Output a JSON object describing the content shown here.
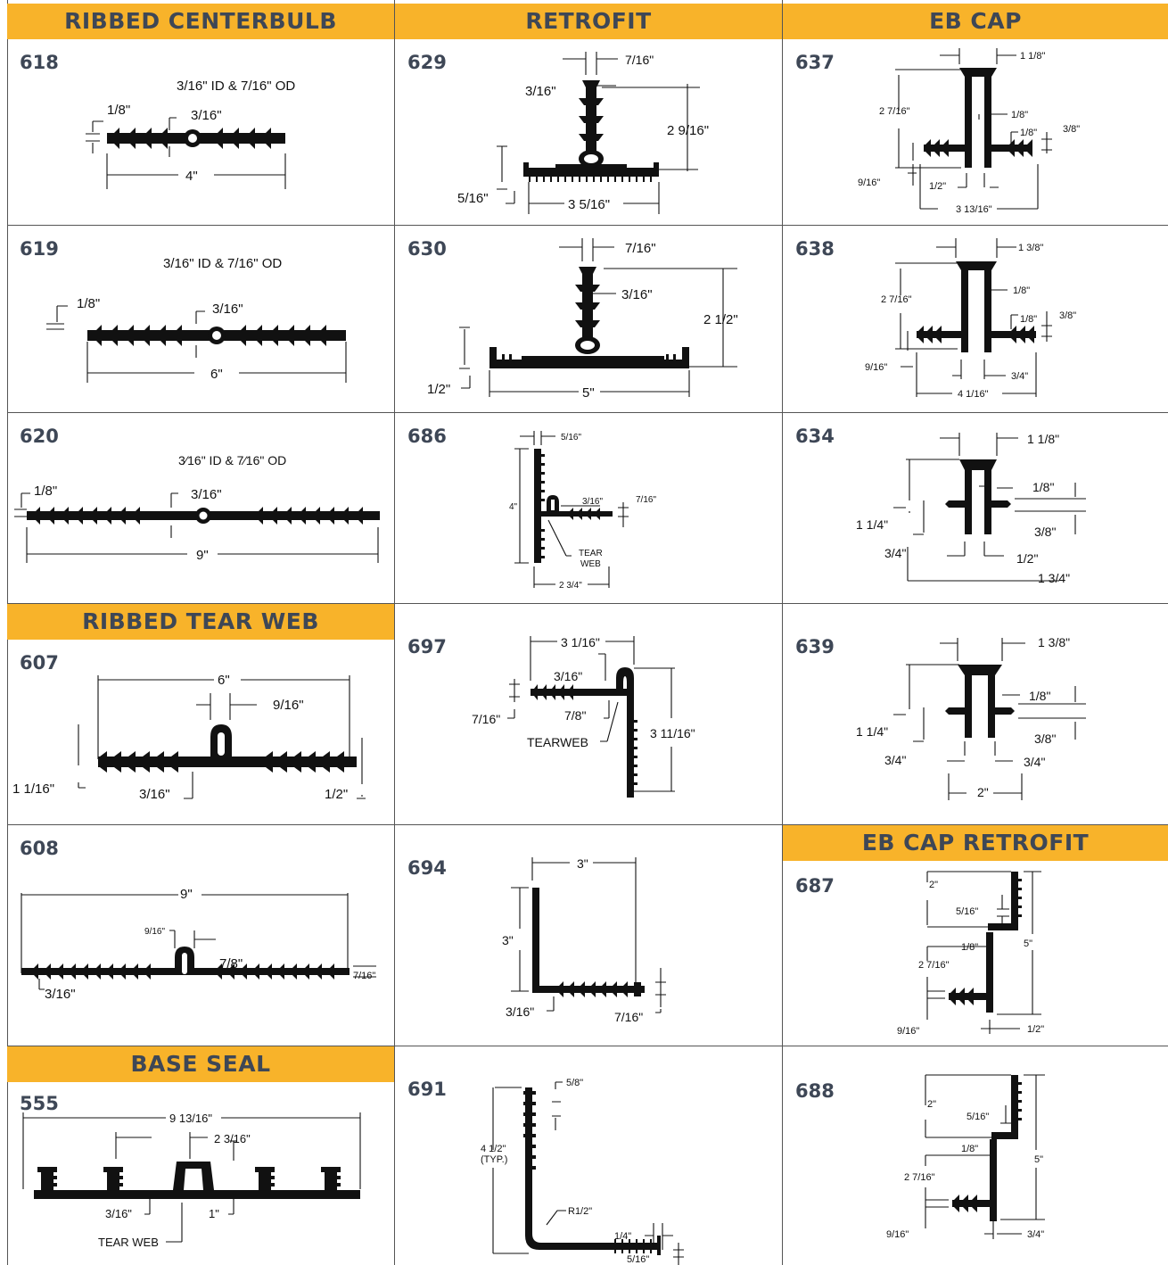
{
  "headers": {
    "ribbed_centerbulb": "RIBBED CENTERBULB",
    "retrofit": "RETROFIT",
    "eb_cap": "EB CAP",
    "ribbed_tear_web": "RIBBED TEAR WEB",
    "eb_cap_retrofit": "EB CAP RETROFIT",
    "base_seal": "BASE SEAL"
  },
  "products": {
    "p618": {
      "code": "618",
      "note": "3/16\" ID & 7/16\" OD",
      "d1": "1/8\"",
      "d2": "3/16\"",
      "d3": "4\""
    },
    "p619": {
      "code": "619",
      "note": "3/16\" ID & 7/16\" OD",
      "d1": "1/8\"",
      "d2": "3/16\"",
      "d3": "6\""
    },
    "p620": {
      "code": "620",
      "note": "3⁄16\" ID & 7⁄16\" OD",
      "d1": "1/8\"",
      "d2": "3/16\"",
      "d3": "9\""
    },
    "p607": {
      "code": "607",
      "d1": "6\"",
      "d2": "9/16\"",
      "d3": "1 1/16\"",
      "d4": "3/16\"",
      "d5": "1/2\""
    },
    "p608": {
      "code": "608",
      "d1": "9\"",
      "d2": "9/16\"",
      "d3": "7/8\"",
      "d4": "7/16\"",
      "d5": "3/16\""
    },
    "p555": {
      "code": "555",
      "d1": "9 13/16\"",
      "d2": "2 3/16\"",
      "d3": "3/16\"",
      "d4": "1\"",
      "d5": "TEAR WEB"
    },
    "p629": {
      "code": "629",
      "d1": "7/16\"",
      "d2": "3/16\"",
      "d3": "2 9/16\"",
      "d4": "5/16\"",
      "d5": "3 5/16\""
    },
    "p630": {
      "code": "630",
      "d1": "7/16\"",
      "d2": "3/16\"",
      "d3": "2 1/2\"",
      "d4": "1/2\"",
      "d5": "5\""
    },
    "p686": {
      "code": "686",
      "d1": "5/16\"",
      "d2": "4\"",
      "d3": "3/16\"",
      "d4": "7/16\"",
      "d5": "TEAR",
      "d6": "WEB",
      "d7": "2 3/4\""
    },
    "p697": {
      "code": "697",
      "d1": "3 1/16\"",
      "d2": "3/16\"",
      "d3": "7/16\"",
      "d4": "7/8\"",
      "d5": "TEARWEB",
      "d6": "3 11/16\""
    },
    "p694": {
      "code": "694",
      "d1": "3\"",
      "d2": "3\"",
      "d3": "3/16\"",
      "d4": "7/16\""
    },
    "p691": {
      "code": "691",
      "d1": "5/8\"",
      "d2": "4 1/2\"",
      "d3": "(TYP.)",
      "d4": "R1/2\"",
      "d5": "1/4\"",
      "d6": "5/16\""
    },
    "p637": {
      "code": "637",
      "d1": "1 1/8\"",
      "d2": "2 7/16\"",
      "d3": "1/8\"",
      "d4": "1/8\"",
      "d5": "3/8\"",
      "d6": "9/16\"",
      "d7": "1/2\"",
      "d8": "3 13/16\""
    },
    "p638": {
      "code": "638",
      "d1": "1 3/8\"",
      "d2": "2 7/16\"",
      "d3": "1/8\"",
      "d4": "1/8\"",
      "d5": "3/8\"",
      "d6": "9/16\"",
      "d7": "3/4\"",
      "d8": "4 1/16\""
    },
    "p634": {
      "code": "634",
      "d1": "1 1/8\"",
      "d2": "1/8\"",
      "d3": "1 1/4\"",
      "d4": "3/8\"",
      "d5": "3/4\"",
      "d6": "1/2\"",
      "d7": "1 3/4\""
    },
    "p639": {
      "code": "639",
      "d1": "1 3/8\"",
      "d2": "1/8\"",
      "d3": "1 1/4\"",
      "d4": "3/8\"",
      "d5": "3/4\"",
      "d6": "3/4\"",
      "d7": "2\""
    },
    "p687": {
      "code": "687",
      "d1": "2\"",
      "d2": "5/16\"",
      "d3": "1/8\"",
      "d4": "5\"",
      "d5": "2 7/16\"",
      "d6": "9/16\"",
      "d7": "1/2\""
    },
    "p688": {
      "code": "688",
      "d1": "2\"",
      "d2": "5/16\"",
      "d3": "1/8\"",
      "d4": "5\"",
      "d5": "2 7/16\"",
      "d6": "9/16\"",
      "d7": "3/4\""
    }
  }
}
